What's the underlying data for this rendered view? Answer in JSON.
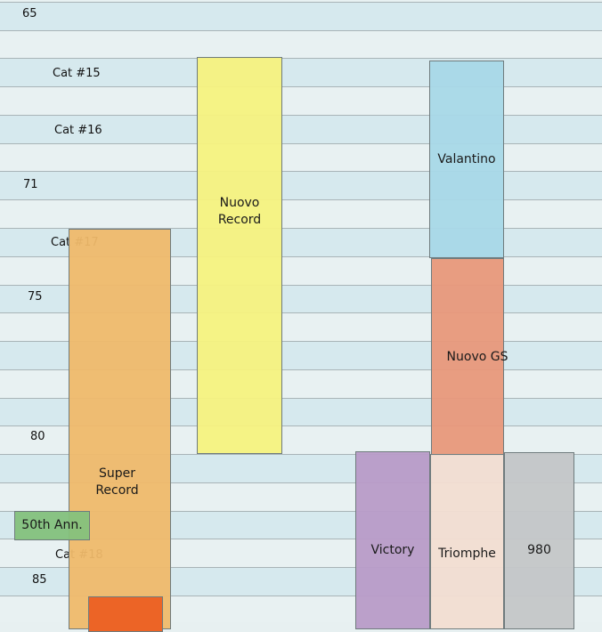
{
  "years": {
    "y65": "65",
    "y71": "71",
    "y75": "75",
    "y80": "80",
    "y85": "85"
  },
  "catalogs": {
    "cat15": "Cat #15",
    "cat16": "Cat #16",
    "cat17": "Cat #17",
    "cat18": "Cat #18"
  },
  "groups": {
    "super_record": "Super\nRecord",
    "nuovo_record": "Nuovo\nRecord",
    "valantino": "Valantino",
    "nuovo_gs": "Nuovo GS",
    "victory": "Victory",
    "triomphe": "Triomphe",
    "model_980": "980",
    "anniversary": "50th Ann."
  },
  "colors": {
    "super_record": "#efb96a",
    "nuovo_record": "#f6f27e",
    "valantino": "#a8d8e7",
    "nuovo_gs": "#e8987a",
    "victory": "#b89bc7",
    "triomphe": "#f2ddd1",
    "model_980": "#c4c6c7",
    "anniversary": "#84c17c",
    "orange_block": "#ec6426"
  }
}
